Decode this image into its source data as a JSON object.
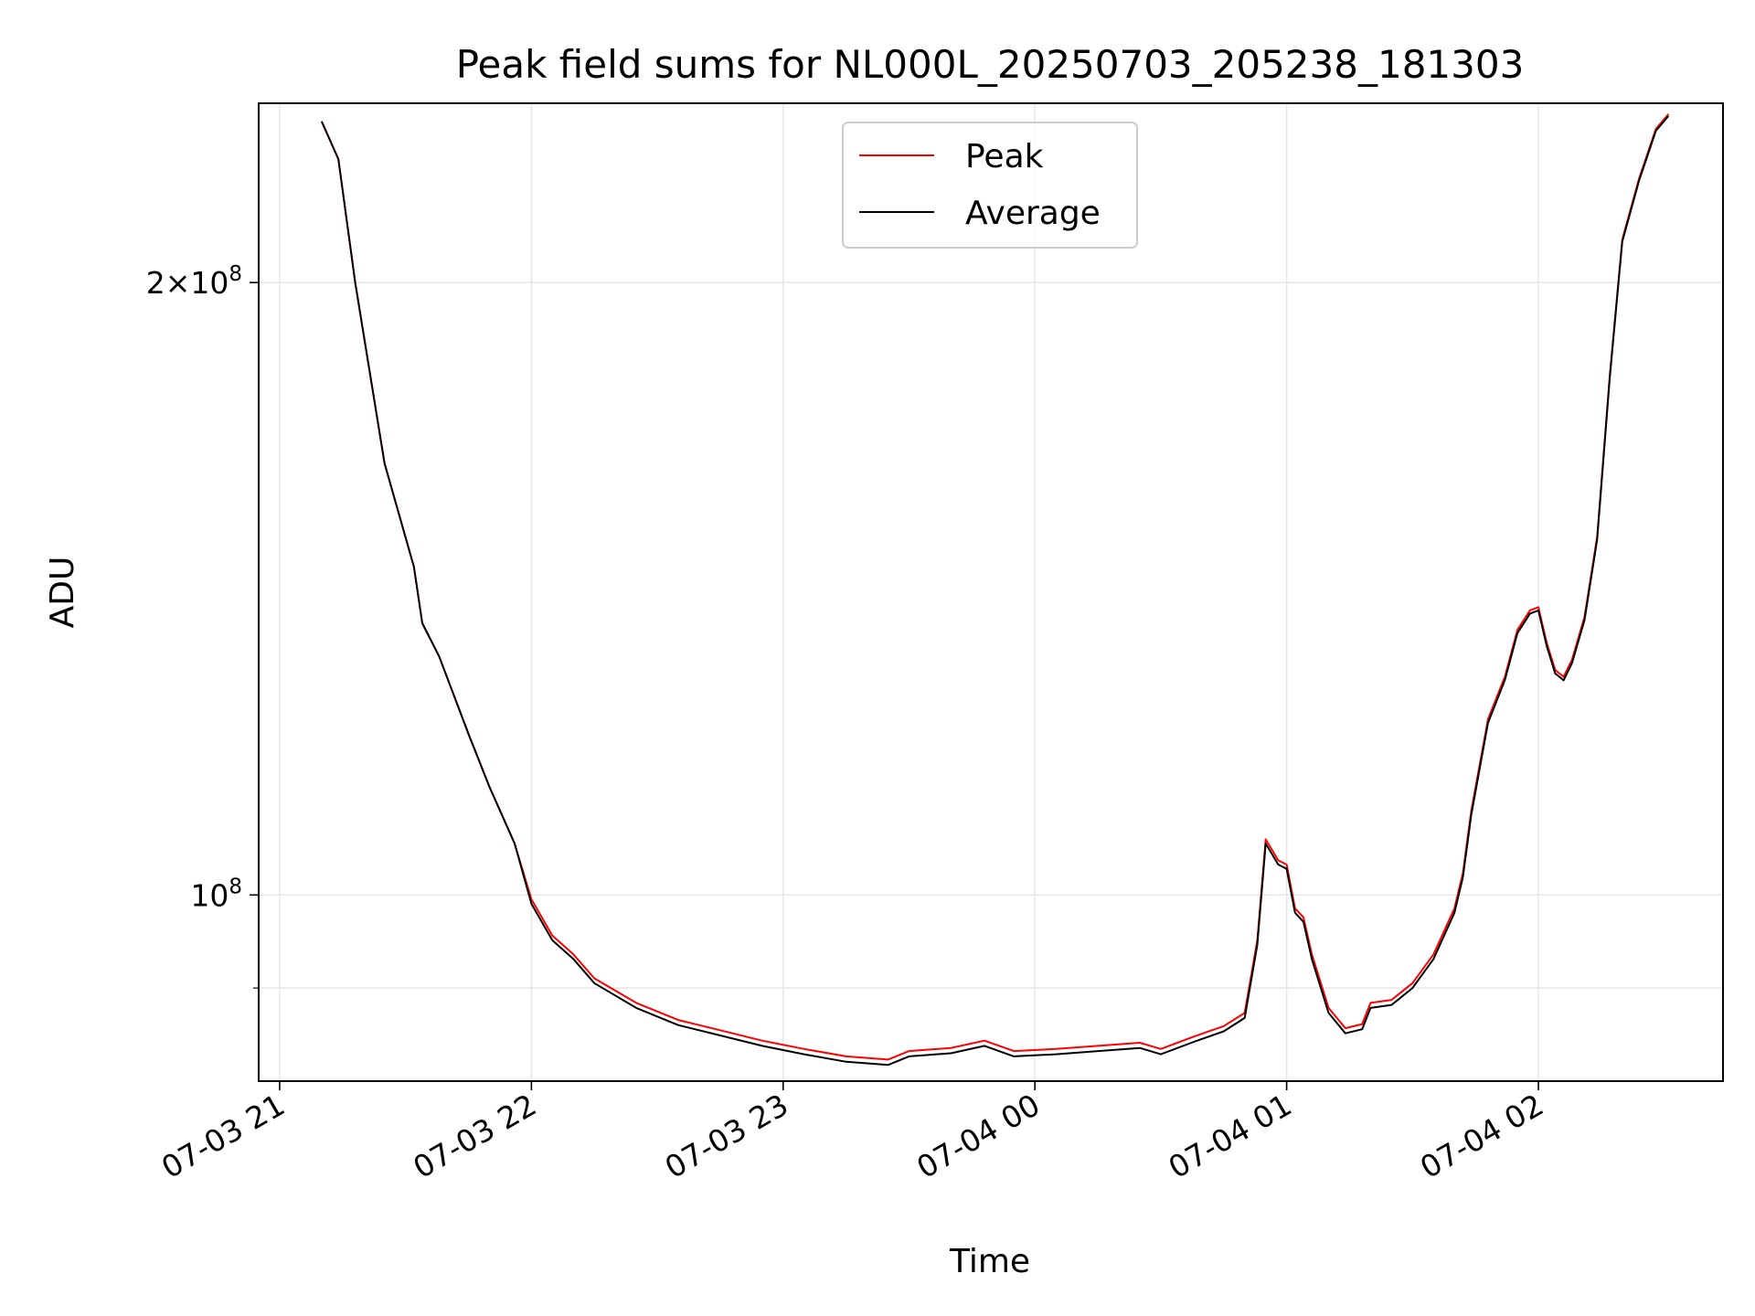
{
  "chart_data": {
    "type": "line",
    "title": "Peak field sums for NL000L_20250703_205238_181303",
    "xlabel": "Time",
    "ylabel": "ADU",
    "y_scale": "log",
    "grid": true,
    "legend_placement": "top-center",
    "x_range": [
      "2025-07-03 20:55",
      "2025-07-04 02:44"
    ],
    "ylim": [
      81000000,
      245000000
    ],
    "x_ticks": [
      {
        "value": "2025-07-03 21:00",
        "label": "07-03 21"
      },
      {
        "value": "2025-07-03 22:00",
        "label": "07-03 22"
      },
      {
        "value": "2025-07-03 23:00",
        "label": "07-03 23"
      },
      {
        "value": "2025-07-04 00:00",
        "label": "07-04 00"
      },
      {
        "value": "2025-07-04 01:00",
        "label": "07-04 01"
      },
      {
        "value": "2025-07-04 02:00",
        "label": "07-04 02"
      }
    ],
    "y_ticks": [
      {
        "value": 200000000,
        "label_mantissa": "2",
        "label_times": "×",
        "label_base": "10",
        "label_exp": "8"
      },
      {
        "value": 100000000,
        "label_mantissa": "",
        "label_times": "",
        "label_base": "10",
        "label_exp": "8"
      }
    ],
    "y_minor_ticks": [
      90000000
    ],
    "series": [
      {
        "name": "Peak",
        "color": "#ff0000",
        "points": [
          [
            "2025-07-03 21:10",
            240000000
          ],
          [
            "2025-07-03 21:14",
            230000000
          ],
          [
            "2025-07-03 21:18",
            200000000
          ],
          [
            "2025-07-03 21:25",
            163000000
          ],
          [
            "2025-07-03 21:32",
            145000000
          ],
          [
            "2025-07-03 21:34",
            136000000
          ],
          [
            "2025-07-03 21:38",
            131000000
          ],
          [
            "2025-07-03 21:45",
            120000000
          ],
          [
            "2025-07-03 21:50",
            113000000
          ],
          [
            "2025-07-03 21:56",
            106000000
          ],
          [
            "2025-07-03 22:00",
            99500000
          ],
          [
            "2025-07-03 22:05",
            95500000
          ],
          [
            "2025-07-03 22:10",
            93500000
          ],
          [
            "2025-07-03 22:15",
            91000000
          ],
          [
            "2025-07-03 22:25",
            88500000
          ],
          [
            "2025-07-03 22:35",
            86800000
          ],
          [
            "2025-07-03 22:45",
            85800000
          ],
          [
            "2025-07-03 22:55",
            84800000
          ],
          [
            "2025-07-03 23:05",
            84000000
          ],
          [
            "2025-07-03 23:15",
            83300000
          ],
          [
            "2025-07-03 23:25",
            83000000
          ],
          [
            "2025-07-03 23:30",
            83800000
          ],
          [
            "2025-07-03 23:40",
            84100000
          ],
          [
            "2025-07-03 23:48",
            84800000
          ],
          [
            "2025-07-03 23:55",
            83800000
          ],
          [
            "2025-07-04 00:05",
            84000000
          ],
          [
            "2025-07-04 00:15",
            84300000
          ],
          [
            "2025-07-04 00:25",
            84600000
          ],
          [
            "2025-07-04 00:30",
            84000000
          ],
          [
            "2025-07-04 00:38",
            85200000
          ],
          [
            "2025-07-04 00:45",
            86200000
          ],
          [
            "2025-07-04 00:50",
            87500000
          ],
          [
            "2025-07-04 00:53",
            95000000
          ],
          [
            "2025-07-04 00:55",
            106500000
          ],
          [
            "2025-07-04 00:58",
            104000000
          ],
          [
            "2025-07-04 01:00",
            103500000
          ],
          [
            "2025-07-04 01:02",
            98500000
          ],
          [
            "2025-07-04 01:04",
            97500000
          ],
          [
            "2025-07-04 01:06",
            93500000
          ],
          [
            "2025-07-04 01:10",
            88000000
          ],
          [
            "2025-07-04 01:14",
            86000000
          ],
          [
            "2025-07-04 01:18",
            86400000
          ],
          [
            "2025-07-04 01:20",
            88500000
          ],
          [
            "2025-07-04 01:25",
            88800000
          ],
          [
            "2025-07-04 01:30",
            90500000
          ],
          [
            "2025-07-04 01:35",
            93500000
          ],
          [
            "2025-07-04 01:40",
            98500000
          ],
          [
            "2025-07-04 01:42",
            102500000
          ],
          [
            "2025-07-04 01:44",
            110000000
          ],
          [
            "2025-07-04 01:48",
            122000000
          ],
          [
            "2025-07-04 01:52",
            128000000
          ],
          [
            "2025-07-04 01:55",
            135000000
          ],
          [
            "2025-07-04 01:58",
            138000000
          ],
          [
            "2025-07-04 02:00",
            138500000
          ],
          [
            "2025-07-04 02:02",
            133000000
          ],
          [
            "2025-07-04 02:04",
            129000000
          ],
          [
            "2025-07-04 02:06",
            128000000
          ],
          [
            "2025-07-04 02:08",
            130500000
          ],
          [
            "2025-07-04 02:11",
            137000000
          ],
          [
            "2025-07-04 02:14",
            150000000
          ],
          [
            "2025-07-04 02:17",
            180000000
          ],
          [
            "2025-07-04 02:20",
            210000000
          ],
          [
            "2025-07-04 02:24",
            225000000
          ],
          [
            "2025-07-04 02:28",
            238000000
          ],
          [
            "2025-07-04 02:31",
            242000000
          ]
        ]
      },
      {
        "name": "Average",
        "color": "#000000",
        "points": [
          [
            "2025-07-03 21:10",
            240000000
          ],
          [
            "2025-07-03 21:14",
            230000000
          ],
          [
            "2025-07-03 21:18",
            200000000
          ],
          [
            "2025-07-03 21:25",
            163000000
          ],
          [
            "2025-07-03 21:32",
            145000000
          ],
          [
            "2025-07-03 21:34",
            136000000
          ],
          [
            "2025-07-03 21:38",
            131000000
          ],
          [
            "2025-07-03 21:45",
            120000000
          ],
          [
            "2025-07-03 21:50",
            113000000
          ],
          [
            "2025-07-03 21:56",
            106000000
          ],
          [
            "2025-07-03 22:00",
            99000000
          ],
          [
            "2025-07-03 22:05",
            95000000
          ],
          [
            "2025-07-03 22:10",
            93000000
          ],
          [
            "2025-07-03 22:15",
            90500000
          ],
          [
            "2025-07-03 22:25",
            88000000
          ],
          [
            "2025-07-03 22:35",
            86300000
          ],
          [
            "2025-07-03 22:45",
            85300000
          ],
          [
            "2025-07-03 22:55",
            84300000
          ],
          [
            "2025-07-03 23:05",
            83500000
          ],
          [
            "2025-07-03 23:15",
            82800000
          ],
          [
            "2025-07-03 23:25",
            82500000
          ],
          [
            "2025-07-03 23:30",
            83300000
          ],
          [
            "2025-07-03 23:40",
            83600000
          ],
          [
            "2025-07-03 23:48",
            84300000
          ],
          [
            "2025-07-03 23:55",
            83300000
          ],
          [
            "2025-07-04 00:05",
            83500000
          ],
          [
            "2025-07-04 00:15",
            83800000
          ],
          [
            "2025-07-04 00:25",
            84100000
          ],
          [
            "2025-07-04 00:30",
            83500000
          ],
          [
            "2025-07-04 00:38",
            84700000
          ],
          [
            "2025-07-04 00:45",
            85700000
          ],
          [
            "2025-07-04 00:50",
            87000000
          ],
          [
            "2025-07-04 00:53",
            94500000
          ],
          [
            "2025-07-04 00:55",
            106000000
          ],
          [
            "2025-07-04 00:58",
            103500000
          ],
          [
            "2025-07-04 01:00",
            103000000
          ],
          [
            "2025-07-04 01:02",
            98000000
          ],
          [
            "2025-07-04 01:04",
            97000000
          ],
          [
            "2025-07-04 01:06",
            93000000
          ],
          [
            "2025-07-04 01:10",
            87500000
          ],
          [
            "2025-07-04 01:14",
            85500000
          ],
          [
            "2025-07-04 01:18",
            85900000
          ],
          [
            "2025-07-04 01:20",
            88000000
          ],
          [
            "2025-07-04 01:25",
            88300000
          ],
          [
            "2025-07-04 01:30",
            90000000
          ],
          [
            "2025-07-04 01:35",
            93000000
          ],
          [
            "2025-07-04 01:40",
            98000000
          ],
          [
            "2025-07-04 01:42",
            102000000
          ],
          [
            "2025-07-04 01:44",
            109500000
          ],
          [
            "2025-07-04 01:48",
            121500000
          ],
          [
            "2025-07-04 01:52",
            127500000
          ],
          [
            "2025-07-04 01:55",
            134500000
          ],
          [
            "2025-07-04 01:58",
            137500000
          ],
          [
            "2025-07-04 02:00",
            138000000
          ],
          [
            "2025-07-04 02:02",
            132500000
          ],
          [
            "2025-07-04 02:04",
            128500000
          ],
          [
            "2025-07-04 02:06",
            127500000
          ],
          [
            "2025-07-04 02:08",
            130000000
          ],
          [
            "2025-07-04 02:11",
            136500000
          ],
          [
            "2025-07-04 02:14",
            149500000
          ],
          [
            "2025-07-04 02:17",
            179500000
          ],
          [
            "2025-07-04 02:20",
            209500000
          ],
          [
            "2025-07-04 02:24",
            224500000
          ],
          [
            "2025-07-04 02:28",
            237500000
          ],
          [
            "2025-07-04 02:31",
            241500000
          ]
        ]
      }
    ]
  }
}
